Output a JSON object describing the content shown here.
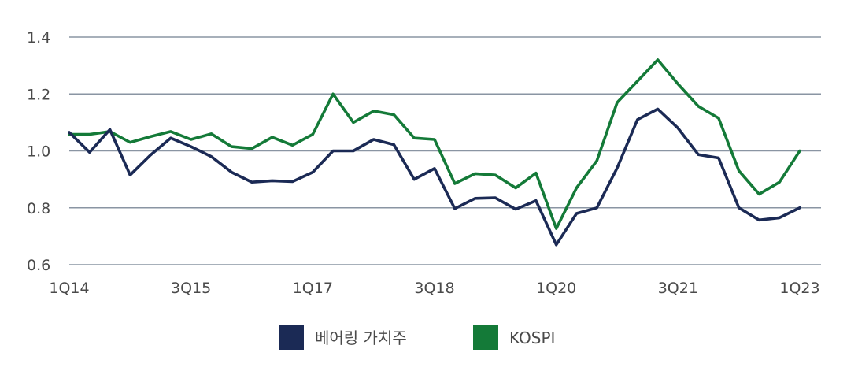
{
  "chart_data": {
    "type": "line",
    "x": [
      "1Q14",
      "2Q14",
      "3Q14",
      "4Q14",
      "1Q15",
      "2Q15",
      "3Q15",
      "4Q15",
      "1Q16",
      "2Q16",
      "3Q16",
      "4Q16",
      "1Q17",
      "2Q17",
      "3Q17",
      "4Q17",
      "1Q18",
      "2Q18",
      "3Q18",
      "4Q18",
      "1Q19",
      "2Q19",
      "3Q19",
      "4Q19",
      "1Q20",
      "2Q20",
      "3Q20",
      "4Q20",
      "1Q21",
      "2Q21",
      "3Q21",
      "4Q21",
      "1Q22",
      "2Q22",
      "3Q22",
      "4Q22",
      "1Q23"
    ],
    "x_tick_labels": [
      "1Q14",
      "3Q15",
      "1Q17",
      "3Q18",
      "1Q20",
      "3Q21",
      "1Q23"
    ],
    "series": [
      {
        "name": "베어링 가치주",
        "color": "#1b2a55",
        "values": [
          1.065,
          0.995,
          1.075,
          0.915,
          0.985,
          1.045,
          1.015,
          0.98,
          0.925,
          0.89,
          0.895,
          0.892,
          0.925,
          1.0,
          1.0,
          1.04,
          1.022,
          0.9,
          0.938,
          0.797,
          0.833,
          0.835,
          0.795,
          0.825,
          0.67,
          0.78,
          0.8,
          0.94,
          1.11,
          1.147,
          1.08,
          0.987,
          0.975,
          0.8,
          0.757,
          0.765,
          0.8
        ]
      },
      {
        "name": "KOSPI",
        "color": "#147a38",
        "values": [
          1.058,
          1.058,
          1.068,
          1.03,
          1.05,
          1.068,
          1.04,
          1.06,
          1.015,
          1.008,
          1.048,
          1.02,
          1.058,
          1.2,
          1.1,
          1.14,
          1.127,
          1.045,
          1.04,
          0.885,
          0.92,
          0.915,
          0.87,
          0.922,
          0.727,
          0.87,
          0.965,
          1.17,
          1.245,
          1.32,
          1.235,
          1.157,
          1.115,
          0.93,
          0.848,
          0.89,
          1.0
        ]
      }
    ],
    "y_ticks": [
      "0.6",
      "0.8",
      "1.0",
      "1.2",
      "1.4"
    ],
    "ylim": [
      0.6,
      1.4
    ],
    "grid": true,
    "legend_position": "bottom-center"
  }
}
